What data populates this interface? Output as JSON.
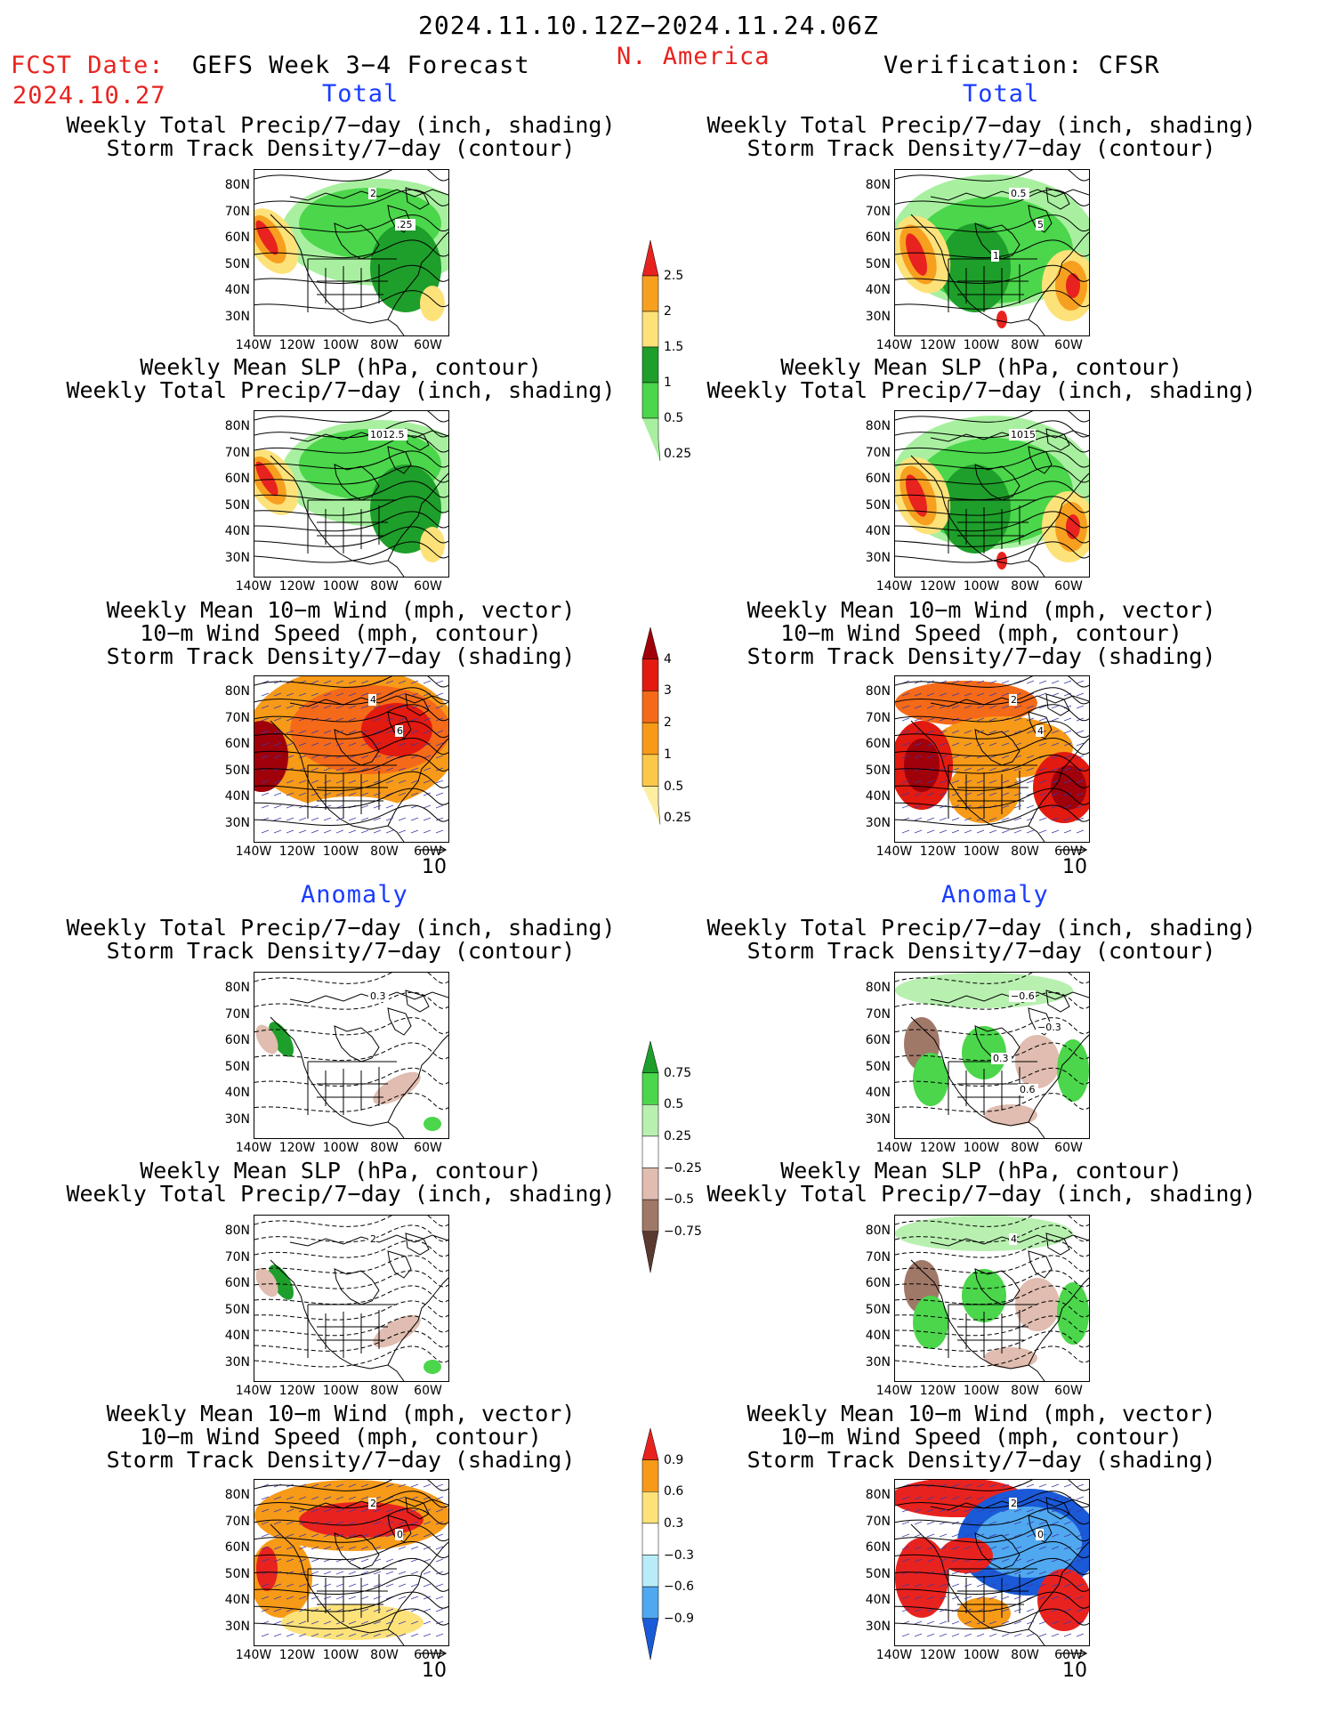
{
  "header": {
    "period": "2024.11.10.12Z−2024.11.24.06Z",
    "region": "N. America",
    "fcst_label": "FCST Date:",
    "fcst_date": "2024.10.27",
    "forecast_title": "GEFS Week 3−4 Forecast",
    "verification": "Verification: CFSR"
  },
  "sections": {
    "total": "Total",
    "anomaly": "Anomaly"
  },
  "titles": {
    "precip_storm": [
      "Weekly Total Precip/7−day (inch, shading)",
      "Storm Track Density/7−day (contour)"
    ],
    "slp_precip": [
      "Weekly Mean SLP (hPa, contour)",
      "Weekly Total Precip/7−day (inch, shading)"
    ],
    "wind_storm": [
      "Weekly Mean 10−m Wind (mph, vector)",
      "10−m Wind Speed (mph, contour)",
      "Storm Track Density/7−day (shading)"
    ]
  },
  "axes": {
    "lat_ticks": [
      "80N",
      "70N",
      "60N",
      "50N",
      "40N",
      "30N"
    ],
    "lon_ticks": [
      "140W",
      "120W",
      "100W",
      "80W",
      "60W"
    ]
  },
  "vector_ref": "10",
  "colorbars": {
    "precip_total": {
      "labels": [
        "2.5",
        "2",
        "1.5",
        "1",
        "0.5",
        "0.25"
      ],
      "colors": [
        "#e8231f",
        "#f7a020",
        "#fde27a",
        "#1e9e2a",
        "#4bd64b",
        "#a8f0a0"
      ]
    },
    "storm_total": {
      "labels": [
        "4",
        "3",
        "2",
        "1",
        "0.5",
        "0.25"
      ],
      "colors": [
        "#a0000a",
        "#e21a10",
        "#f56a18",
        "#f79a18",
        "#fbc84a",
        "#fdeea0"
      ]
    },
    "precip_anom": {
      "labels": [
        "0.75",
        "0.5",
        "0.25",
        "−0.25",
        "−0.5",
        "−0.75"
      ],
      "colors": [
        "#1e9e2a",
        "#4bd64b",
        "#b8f0b0",
        "#ffffff",
        "#e0bdb0",
        "#a07868",
        "#5a3a30"
      ]
    },
    "storm_anom": {
      "labels": [
        "0.9",
        "0.6",
        "0.3",
        "−0.3",
        "−0.6",
        "−0.9"
      ],
      "colors": [
        "#e8231f",
        "#f79a18",
        "#fde27a",
        "#ffffff",
        "#b8ecf8",
        "#50a8f0",
        "#1a5ad8"
      ]
    }
  },
  "contour_labels": {
    "p1": [
      "2",
      ".25"
    ],
    "p2": [
      "1012.5"
    ],
    "p3": [
      "4",
      "6"
    ],
    "v1": [
      "0.5",
      "5",
      "1"
    ],
    "v2": [
      "1015"
    ],
    "v3": [
      "2",
      "4"
    ],
    "a1": [
      "0.3"
    ],
    "a2": [
      "2"
    ],
    "a3": [
      "2",
      "0"
    ],
    "b1": [
      "−0.6",
      "−0.3",
      "0.3",
      "0.6"
    ],
    "b2": [
      "4"
    ],
    "b3": [
      "2",
      "0"
    ]
  }
}
